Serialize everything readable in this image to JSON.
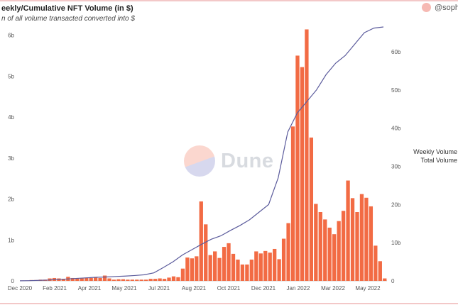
{
  "title": "eekly/Cumulative NFT Volume (in $)",
  "subtitle": "n of all volume transacted converted into $",
  "author": "@sophie",
  "watermark": "Dune",
  "legend": {
    "items": [
      "Weekly Volume",
      "Total Volume"
    ]
  },
  "colors": {
    "bar": "#f26b44",
    "line": "#5b5b9c",
    "accent": "#f6b9b3"
  },
  "chart_data": {
    "type": "bar",
    "x_tick_labels": [
      "Dec 2020",
      "Feb 2021",
      "Apr 2021",
      "May 2021",
      "Jul 2021",
      "Aug 2021",
      "Oct 2021",
      "Dec 2021",
      "Jan 2022",
      "Mar 2022",
      "May 2022"
    ],
    "y_left_ticks": [
      "0",
      "1b",
      "2b",
      "3b",
      "4b",
      "5b",
      "6b"
    ],
    "y_right_ticks": [
      "0",
      "10b",
      "20b",
      "30b",
      "40b",
      "50b",
      "60b"
    ],
    "ylim_left": [
      0,
      6.2
    ],
    "ylim_right": [
      0,
      66.5
    ],
    "series": [
      {
        "type": "bar",
        "axis": "left",
        "values": [
          0.01,
          0.01,
          0.02,
          0.02,
          0.03,
          0.03,
          0.06,
          0.07,
          0.06,
          0.05,
          0.1,
          0.07,
          0.06,
          0.06,
          0.08,
          0.07,
          0.09,
          0.07,
          0.13,
          0.06,
          0.03,
          0.04,
          0.04,
          0.03,
          0.03,
          0.03,
          0.03,
          0.03,
          0.05,
          0.05,
          0.06,
          0.05,
          0.08,
          0.11,
          0.09,
          0.3,
          0.57,
          0.55,
          0.6,
          1.94,
          1.38,
          0.63,
          0.72,
          0.56,
          0.83,
          0.92,
          0.66,
          0.52,
          0.4,
          0.4,
          0.52,
          0.72,
          0.67,
          0.73,
          0.69,
          0.78,
          0.53,
          1.03,
          1.41,
          3.77,
          5.5,
          5.22,
          6.14,
          3.5,
          1.88,
          1.68,
          1.5,
          1.3,
          1.14,
          1.46,
          1.71,
          2.45,
          2.02,
          1.68,
          2.12,
          2.03,
          1.82,
          0.86,
          0.48,
          0.06
        ],
        "x_range": [
          "Dec 2020",
          "May 2022"
        ]
      },
      {
        "type": "line",
        "axis": "right",
        "values": [
          0.02,
          0.06,
          0.14,
          0.22,
          0.38,
          0.5,
          0.66,
          0.8,
          0.95,
          1.02,
          1.15,
          1.25,
          1.4,
          1.6,
          2.1,
          3.5,
          5.0,
          6.8,
          8.2,
          9.6,
          10.9,
          11.8,
          13.2,
          14.5,
          16.0,
          18.0,
          20.0,
          27.0,
          39.0,
          44.0,
          47.0,
          50.0,
          54.0,
          57.0,
          59.0,
          62.0,
          65.0,
          66.2,
          66.5
        ],
        "x_range": [
          "Dec 2020",
          "May 2022"
        ]
      }
    ]
  }
}
